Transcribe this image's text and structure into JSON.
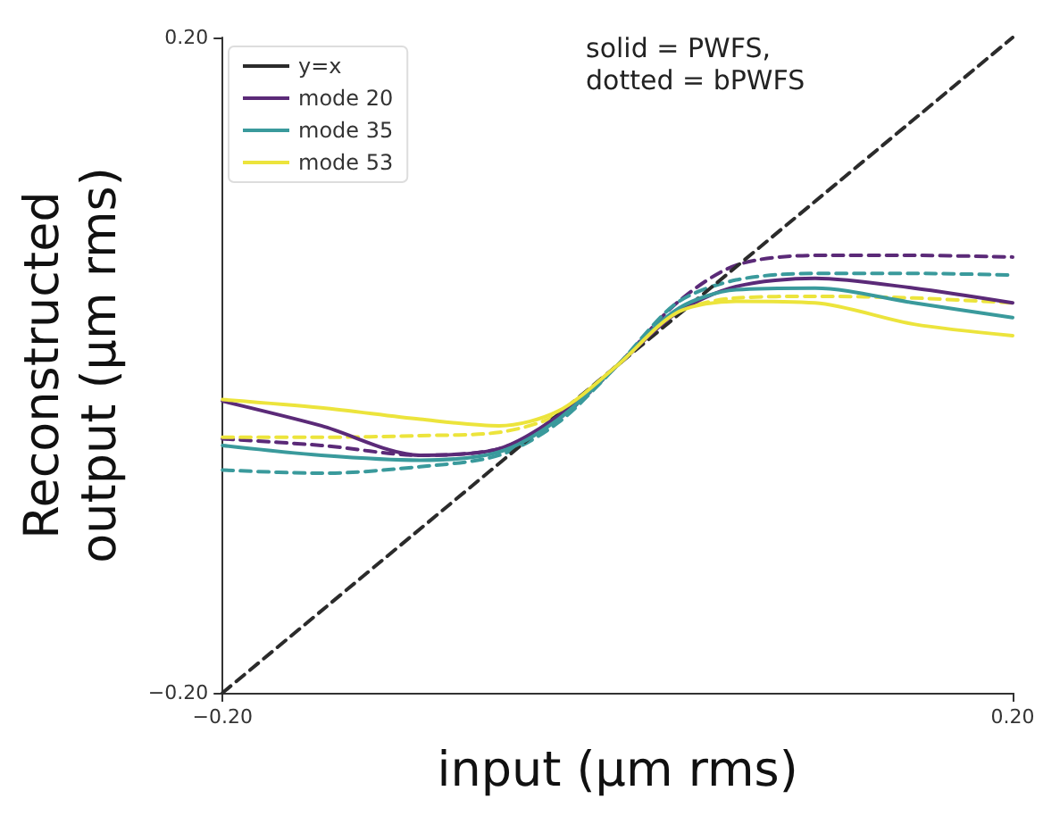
{
  "chart_data": {
    "type": "line",
    "xlabel": "input (μm rms)",
    "ylabel": "Reconstructed\noutput (μm rms)",
    "annotations": [
      "solid = PWFS,\ndotted = bPWFS"
    ],
    "xlim": [
      -0.2,
      0.2
    ],
    "ylim": [
      -0.2,
      0.2
    ],
    "xticks": [
      {
        "value": -0.2,
        "label": "−0.20"
      },
      {
        "value": 0.2,
        "label": "0.20"
      }
    ],
    "yticks": [
      {
        "value": -0.2,
        "label": "−0.20"
      },
      {
        "value": 0.2,
        "label": "0.20"
      }
    ],
    "grid": false,
    "legend": "top left",
    "marker": "none",
    "x": [
      -0.2,
      -0.15,
      -0.1,
      -0.06,
      -0.03,
      0,
      0.03,
      0.06,
      0.1,
      0.15,
      0.2
    ],
    "series": [
      {
        "name": "y=x",
        "color": "#2b2b2b",
        "line_style": "dashed",
        "x": [
          -0.2,
          0.2
        ],
        "values": [
          -0.2,
          0.2
        ]
      },
      {
        "name": "mode 20",
        "color": "#5b2a78",
        "line_style": "solid",
        "values": [
          -0.022,
          -0.037,
          -0.055,
          -0.051,
          -0.031,
          0,
          0.032,
          0.048,
          0.053,
          0.047,
          0.038
        ]
      },
      {
        "name": "mode 35",
        "color": "#3a9a9c",
        "line_style": "solid",
        "values": [
          -0.049,
          -0.055,
          -0.058,
          -0.053,
          -0.033,
          0,
          0.034,
          0.046,
          0.047,
          0.038,
          0.029
        ]
      },
      {
        "name": "mode 53",
        "color": "#ece43c",
        "line_style": "solid",
        "values": [
          -0.021,
          -0.026,
          -0.033,
          -0.037,
          -0.028,
          0,
          0.032,
          0.039,
          0.038,
          0.025,
          0.018
        ]
      },
      {
        "color": "#5b2a78",
        "line_style": "dashed",
        "values": [
          -0.045,
          -0.049,
          -0.055,
          -0.051,
          -0.033,
          0,
          0.038,
          0.061,
          0.067,
          0.067,
          0.066
        ]
      },
      {
        "color": "#3a9a9c",
        "line_style": "dashed",
        "values": [
          -0.064,
          -0.066,
          -0.062,
          -0.055,
          -0.035,
          0,
          0.038,
          0.052,
          0.056,
          0.056,
          0.055
        ]
      },
      {
        "color": "#ece43c",
        "line_style": "dashed",
        "values": [
          -0.044,
          -0.044,
          -0.043,
          -0.041,
          -0.03,
          0,
          0.032,
          0.041,
          0.042,
          0.041,
          0.038
        ]
      }
    ]
  }
}
